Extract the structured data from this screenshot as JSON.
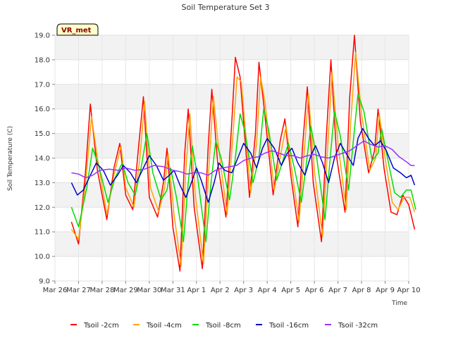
{
  "chart_data": {
    "type": "line",
    "title": "Soil Temperature Set 3",
    "xlabel": "Time",
    "ylabel": "Soil Temperature (C)",
    "badge": "VR_met",
    "ylim": [
      9.0,
      19.0
    ],
    "yticks": [
      "9.0",
      "10.0",
      "11.0",
      "12.0",
      "13.0",
      "14.0",
      "15.0",
      "16.0",
      "17.0",
      "18.0",
      "19.0"
    ],
    "xlim": [
      0,
      15
    ],
    "xticks": [
      "Mar 26",
      "Mar 27",
      "Mar 28",
      "Mar 29",
      "Mar 30",
      "Mar 31",
      "Apr 1",
      "Apr 2",
      "Apr 3",
      "Apr 4",
      "Apr 5",
      "Apr 6",
      "Apr 7",
      "Apr 8",
      "Apr 9",
      "Apr 10"
    ],
    "grid": true,
    "legend_position": "bottom",
    "series": [
      {
        "name": "Tsoil -2cm",
        "color": "#ff0000",
        "points": [
          [
            0.7,
            11.4
          ],
          [
            1.0,
            10.5
          ],
          [
            1.3,
            13.5
          ],
          [
            1.5,
            16.2
          ],
          [
            1.8,
            13.5
          ],
          [
            2.2,
            11.5
          ],
          [
            2.5,
            13.6
          ],
          [
            2.75,
            14.6
          ],
          [
            3.0,
            12.5
          ],
          [
            3.3,
            11.9
          ],
          [
            3.55,
            14.5
          ],
          [
            3.75,
            16.5
          ],
          [
            4.0,
            12.4
          ],
          [
            4.35,
            11.6
          ],
          [
            4.6,
            13.0
          ],
          [
            4.75,
            14.4
          ],
          [
            5.0,
            11.2
          ],
          [
            5.3,
            9.4
          ],
          [
            5.5,
            14.2
          ],
          [
            5.65,
            16.0
          ],
          [
            5.9,
            12.0
          ],
          [
            6.25,
            9.5
          ],
          [
            6.5,
            14.5
          ],
          [
            6.65,
            16.8
          ],
          [
            6.9,
            13.8
          ],
          [
            7.25,
            11.6
          ],
          [
            7.5,
            15.5
          ],
          [
            7.65,
            18.1
          ],
          [
            7.85,
            17.3
          ],
          [
            8.25,
            12.4
          ],
          [
            8.5,
            15.0
          ],
          [
            8.65,
            17.9
          ],
          [
            8.85,
            16.2
          ],
          [
            9.25,
            12.5
          ],
          [
            9.55,
            14.7
          ],
          [
            9.75,
            15.6
          ],
          [
            10.0,
            13.3
          ],
          [
            10.3,
            11.2
          ],
          [
            10.5,
            14.5
          ],
          [
            10.7,
            16.9
          ],
          [
            10.95,
            13.0
          ],
          [
            11.3,
            10.6
          ],
          [
            11.5,
            14.8
          ],
          [
            11.7,
            18.0
          ],
          [
            11.95,
            14.0
          ],
          [
            12.3,
            11.8
          ],
          [
            12.5,
            16.5
          ],
          [
            12.7,
            19.0
          ],
          [
            12.95,
            15.5
          ],
          [
            13.3,
            13.4
          ],
          [
            13.55,
            14.3
          ],
          [
            13.7,
            16.0
          ],
          [
            13.95,
            13.6
          ],
          [
            14.25,
            11.8
          ],
          [
            14.5,
            11.7
          ],
          [
            14.75,
            12.5
          ],
          [
            15.0,
            12.1
          ],
          [
            15.25,
            11.1
          ]
        ]
      },
      {
        "name": "Tsoil -4cm",
        "color": "#ffa500",
        "points": [
          [
            0.7,
            11.1
          ],
          [
            1.0,
            10.7
          ],
          [
            1.3,
            13.0
          ],
          [
            1.55,
            15.7
          ],
          [
            1.8,
            14.0
          ],
          [
            2.2,
            11.7
          ],
          [
            2.5,
            13.3
          ],
          [
            2.8,
            14.5
          ],
          [
            3.0,
            12.8
          ],
          [
            3.35,
            12.0
          ],
          [
            3.6,
            14.0
          ],
          [
            3.8,
            16.3
          ],
          [
            4.05,
            12.8
          ],
          [
            4.4,
            11.8
          ],
          [
            4.65,
            12.8
          ],
          [
            4.8,
            14.2
          ],
          [
            5.05,
            11.7
          ],
          [
            5.35,
            9.6
          ],
          [
            5.55,
            13.5
          ],
          [
            5.72,
            15.8
          ],
          [
            5.95,
            12.5
          ],
          [
            6.3,
            9.7
          ],
          [
            6.55,
            14.0
          ],
          [
            6.72,
            16.5
          ],
          [
            6.95,
            14.3
          ],
          [
            7.3,
            11.7
          ],
          [
            7.55,
            15.0
          ],
          [
            7.72,
            17.3
          ],
          [
            7.9,
            17.1
          ],
          [
            8.3,
            12.6
          ],
          [
            8.55,
            14.6
          ],
          [
            8.72,
            17.3
          ],
          [
            8.9,
            16.3
          ],
          [
            9.3,
            12.7
          ],
          [
            9.6,
            14.3
          ],
          [
            9.8,
            15.3
          ],
          [
            10.05,
            13.5
          ],
          [
            10.35,
            11.4
          ],
          [
            10.55,
            14.0
          ],
          [
            10.75,
            16.6
          ],
          [
            11.0,
            13.5
          ],
          [
            11.35,
            10.8
          ],
          [
            11.55,
            14.2
          ],
          [
            11.75,
            17.5
          ],
          [
            12.0,
            14.6
          ],
          [
            12.35,
            11.9
          ],
          [
            12.55,
            15.6
          ],
          [
            12.75,
            18.3
          ],
          [
            13.0,
            15.8
          ],
          [
            13.35,
            13.5
          ],
          [
            13.6,
            14.0
          ],
          [
            13.75,
            15.8
          ],
          [
            14.0,
            14.0
          ],
          [
            14.3,
            12.2
          ],
          [
            14.55,
            11.9
          ],
          [
            14.8,
            12.4
          ],
          [
            15.05,
            12.4
          ],
          [
            15.25,
            11.8
          ]
        ]
      },
      {
        "name": "Tsoil -8cm",
        "color": "#00dd00",
        "points": [
          [
            0.7,
            12.0
          ],
          [
            1.0,
            11.2
          ],
          [
            1.35,
            12.8
          ],
          [
            1.6,
            14.4
          ],
          [
            1.85,
            13.7
          ],
          [
            2.25,
            12.2
          ],
          [
            2.55,
            13.2
          ],
          [
            2.85,
            13.8
          ],
          [
            3.1,
            13.0
          ],
          [
            3.4,
            12.5
          ],
          [
            3.65,
            13.6
          ],
          [
            3.9,
            15.0
          ],
          [
            4.15,
            13.4
          ],
          [
            4.5,
            12.3
          ],
          [
            4.75,
            12.7
          ],
          [
            4.9,
            13.6
          ],
          [
            5.15,
            12.4
          ],
          [
            5.45,
            10.6
          ],
          [
            5.65,
            13.0
          ],
          [
            5.82,
            14.5
          ],
          [
            6.05,
            13.2
          ],
          [
            6.4,
            10.6
          ],
          [
            6.62,
            13.0
          ],
          [
            6.82,
            14.7
          ],
          [
            7.05,
            14.0
          ],
          [
            7.4,
            12.3
          ],
          [
            7.65,
            14.0
          ],
          [
            7.85,
            15.8
          ],
          [
            8.05,
            15.1
          ],
          [
            8.4,
            13.0
          ],
          [
            8.65,
            14.0
          ],
          [
            8.85,
            16.0
          ],
          [
            9.05,
            15.2
          ],
          [
            9.4,
            13.1
          ],
          [
            9.7,
            14.0
          ],
          [
            9.9,
            14.6
          ],
          [
            10.15,
            13.6
          ],
          [
            10.45,
            12.2
          ],
          [
            10.65,
            13.7
          ],
          [
            10.85,
            15.3
          ],
          [
            11.1,
            14.0
          ],
          [
            11.45,
            11.5
          ],
          [
            11.65,
            13.8
          ],
          [
            11.85,
            15.9
          ],
          [
            12.1,
            14.9
          ],
          [
            12.45,
            12.7
          ],
          [
            12.65,
            14.7
          ],
          [
            12.85,
            16.6
          ],
          [
            13.1,
            15.9
          ],
          [
            13.45,
            13.9
          ],
          [
            13.7,
            14.2
          ],
          [
            13.85,
            15.2
          ],
          [
            14.1,
            14.0
          ],
          [
            14.4,
            12.6
          ],
          [
            14.65,
            12.4
          ],
          [
            14.9,
            12.7
          ],
          [
            15.1,
            12.7
          ],
          [
            15.3,
            11.9
          ]
        ]
      },
      {
        "name": "Tsoil -16cm",
        "color": "#0000cc",
        "points": [
          [
            0.7,
            13.0
          ],
          [
            0.95,
            12.5
          ],
          [
            1.2,
            12.7
          ],
          [
            1.5,
            13.3
          ],
          [
            1.75,
            13.8
          ],
          [
            2.05,
            13.5
          ],
          [
            2.35,
            12.9
          ],
          [
            2.65,
            13.3
          ],
          [
            2.9,
            13.7
          ],
          [
            3.2,
            13.4
          ],
          [
            3.45,
            13.0
          ],
          [
            3.75,
            13.6
          ],
          [
            4.0,
            14.1
          ],
          [
            4.3,
            13.7
          ],
          [
            4.6,
            13.1
          ],
          [
            4.85,
            13.3
          ],
          [
            5.05,
            13.5
          ],
          [
            5.3,
            12.9
          ],
          [
            5.55,
            12.4
          ],
          [
            5.75,
            12.9
          ],
          [
            6.0,
            13.6
          ],
          [
            6.2,
            13.1
          ],
          [
            6.5,
            12.2
          ],
          [
            6.75,
            13.0
          ],
          [
            6.95,
            13.8
          ],
          [
            7.2,
            13.5
          ],
          [
            7.5,
            13.4
          ],
          [
            7.75,
            14.0
          ],
          [
            8.0,
            14.6
          ],
          [
            8.3,
            14.2
          ],
          [
            8.55,
            13.6
          ],
          [
            8.8,
            14.4
          ],
          [
            9.0,
            14.8
          ],
          [
            9.3,
            14.4
          ],
          [
            9.6,
            13.7
          ],
          [
            9.85,
            14.2
          ],
          [
            10.05,
            14.4
          ],
          [
            10.3,
            13.8
          ],
          [
            10.6,
            13.3
          ],
          [
            10.85,
            14.1
          ],
          [
            11.05,
            14.5
          ],
          [
            11.35,
            13.8
          ],
          [
            11.6,
            13.0
          ],
          [
            11.85,
            14.0
          ],
          [
            12.1,
            14.6
          ],
          [
            12.4,
            14.1
          ],
          [
            12.65,
            13.7
          ],
          [
            12.85,
            14.8
          ],
          [
            13.05,
            15.2
          ],
          [
            13.3,
            14.8
          ],
          [
            13.55,
            14.5
          ],
          [
            13.8,
            14.7
          ],
          [
            14.05,
            14.3
          ],
          [
            14.35,
            13.6
          ],
          [
            14.65,
            13.4
          ],
          [
            14.9,
            13.2
          ],
          [
            15.1,
            13.3
          ],
          [
            15.25,
            12.9
          ]
        ]
      },
      {
        "name": "Tsoil -32cm",
        "color": "#9933ff",
        "points": [
          [
            0.7,
            13.4
          ],
          [
            1.0,
            13.35
          ],
          [
            1.3,
            13.2
          ],
          [
            1.6,
            13.3
          ],
          [
            1.9,
            13.5
          ],
          [
            2.3,
            13.55
          ],
          [
            2.7,
            13.5
          ],
          [
            3.0,
            13.6
          ],
          [
            3.4,
            13.5
          ],
          [
            3.8,
            13.55
          ],
          [
            4.2,
            13.7
          ],
          [
            4.6,
            13.65
          ],
          [
            5.0,
            13.5
          ],
          [
            5.3,
            13.45
          ],
          [
            5.6,
            13.35
          ],
          [
            5.9,
            13.4
          ],
          [
            6.2,
            13.4
          ],
          [
            6.5,
            13.3
          ],
          [
            6.8,
            13.5
          ],
          [
            7.1,
            13.6
          ],
          [
            7.4,
            13.65
          ],
          [
            7.7,
            13.7
          ],
          [
            8.0,
            13.9
          ],
          [
            8.3,
            14.0
          ],
          [
            8.6,
            14.05
          ],
          [
            8.9,
            14.2
          ],
          [
            9.2,
            14.3
          ],
          [
            9.5,
            14.2
          ],
          [
            9.8,
            14.1
          ],
          [
            10.1,
            14.1
          ],
          [
            10.4,
            14.0
          ],
          [
            10.7,
            14.1
          ],
          [
            11.0,
            14.15
          ],
          [
            11.3,
            14.05
          ],
          [
            11.6,
            14.0
          ],
          [
            11.9,
            14.1
          ],
          [
            12.2,
            14.2
          ],
          [
            12.5,
            14.3
          ],
          [
            12.8,
            14.5
          ],
          [
            13.1,
            14.7
          ],
          [
            13.4,
            14.55
          ],
          [
            13.7,
            14.45
          ],
          [
            14.0,
            14.5
          ],
          [
            14.3,
            14.35
          ],
          [
            14.6,
            14.05
          ],
          [
            14.9,
            13.85
          ],
          [
            15.1,
            13.7
          ],
          [
            15.25,
            13.7
          ]
        ]
      }
    ]
  }
}
